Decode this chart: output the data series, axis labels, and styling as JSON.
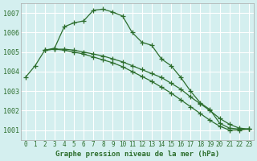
{
  "title": "Graphe pression niveau de la mer (hPa)",
  "bg_color": "#d4efef",
  "grid_color": "#ffffff",
  "line_color": "#2d6e2d",
  "x_labels": [
    "0",
    "1",
    "2",
    "3",
    "4",
    "5",
    "6",
    "7",
    "8",
    "9",
    "10",
    "11",
    "12",
    "13",
    "14",
    "15",
    "16",
    "17",
    "18",
    "19",
    "20",
    "21",
    "22",
    "23"
  ],
  "ylim": [
    1000.5,
    1007.5
  ],
  "yticks": [
    1001,
    1002,
    1003,
    1004,
    1005,
    1006,
    1007
  ],
  "series_x": [
    [
      0,
      1,
      2,
      3,
      4,
      5,
      6,
      7,
      8,
      9,
      10,
      11,
      12,
      13,
      14,
      15,
      16,
      17,
      18,
      19,
      20,
      21,
      22,
      23
    ],
    [
      2,
      3,
      4,
      5,
      6,
      7,
      8,
      9,
      10,
      11,
      12,
      13,
      14,
      15,
      16,
      17,
      18,
      19,
      20,
      21,
      22,
      23
    ],
    [
      2,
      3,
      4,
      5,
      6,
      7,
      8,
      9,
      10,
      11,
      12,
      13,
      14,
      15,
      16,
      17,
      18,
      19,
      20,
      21,
      22,
      23
    ]
  ],
  "series_y": [
    [
      1003.7,
      1004.3,
      1005.1,
      1005.2,
      1006.3,
      1006.5,
      1006.6,
      1007.15,
      1007.2,
      1007.05,
      1006.85,
      1006.0,
      1005.5,
      1005.35,
      1004.65,
      1004.3,
      1003.7,
      1003.0,
      1002.4,
      1002.05,
      1001.35,
      1001.1,
      1001.05,
      1001.05
    ],
    [
      1005.1,
      1005.15,
      1005.15,
      1005.1,
      1005.0,
      1004.9,
      1004.8,
      1004.65,
      1004.5,
      1004.3,
      1004.1,
      1003.9,
      1003.7,
      1003.4,
      1003.1,
      1002.7,
      1002.35,
      1002.0,
      1001.6,
      1001.3,
      1001.1,
      1001.05
    ],
    [
      1005.1,
      1005.15,
      1005.1,
      1005.0,
      1004.9,
      1004.75,
      1004.6,
      1004.45,
      1004.25,
      1004.0,
      1003.75,
      1003.5,
      1003.2,
      1002.9,
      1002.55,
      1002.2,
      1001.85,
      1001.5,
      1001.2,
      1001.0,
      1001.0,
      1001.05
    ]
  ]
}
